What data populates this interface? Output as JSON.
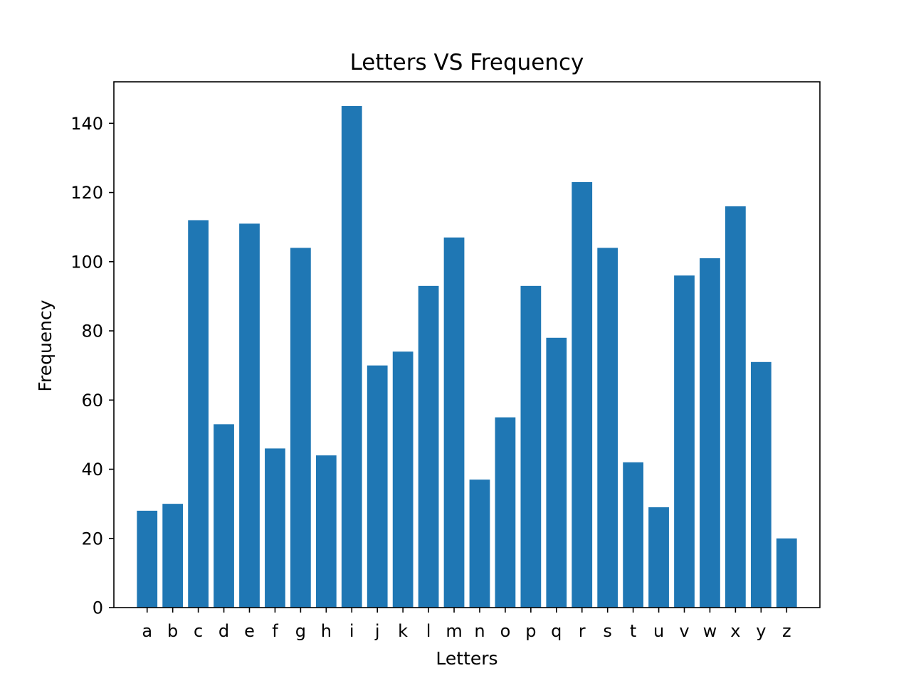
{
  "chart_data": {
    "type": "bar",
    "title": "Letters VS Frequency",
    "xlabel": "Letters",
    "ylabel": "Frequency",
    "categories": [
      "a",
      "b",
      "c",
      "d",
      "e",
      "f",
      "g",
      "h",
      "i",
      "j",
      "k",
      "l",
      "m",
      "n",
      "o",
      "p",
      "q",
      "r",
      "s",
      "t",
      "u",
      "v",
      "w",
      "x",
      "y",
      "z"
    ],
    "values": [
      28,
      30,
      112,
      53,
      111,
      46,
      104,
      44,
      145,
      70,
      74,
      93,
      107,
      37,
      55,
      93,
      78,
      123,
      104,
      42,
      29,
      96,
      101,
      116,
      71,
      20
    ],
    "ylim": [
      0,
      152
    ],
    "yticks": [
      0,
      20,
      40,
      60,
      80,
      100,
      120,
      140
    ],
    "grid": false,
    "bar_color": "#1f77b4"
  }
}
